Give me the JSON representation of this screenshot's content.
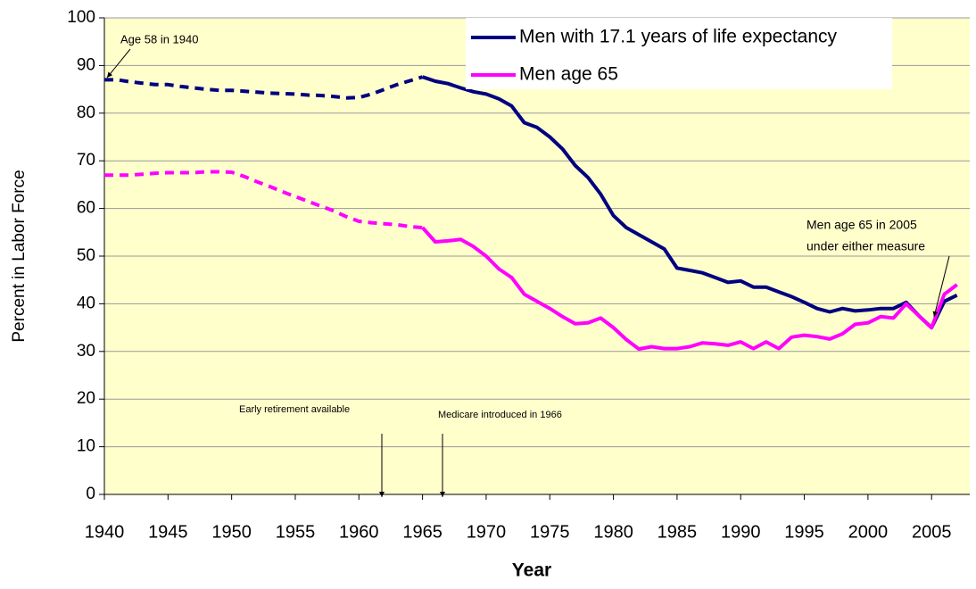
{
  "chart_data": {
    "type": "line",
    "xlabel": "Year",
    "ylabel": "Percent in Labor Force",
    "x": [
      1940,
      1941,
      1942,
      1943,
      1944,
      1945,
      1946,
      1947,
      1948,
      1949,
      1950,
      1951,
      1952,
      1953,
      1954,
      1955,
      1956,
      1957,
      1958,
      1959,
      1960,
      1961,
      1962,
      1963,
      1964,
      1965,
      1966,
      1967,
      1968,
      1969,
      1970,
      1971,
      1972,
      1973,
      1974,
      1975,
      1976,
      1977,
      1978,
      1979,
      1980,
      1981,
      1982,
      1983,
      1984,
      1985,
      1986,
      1987,
      1988,
      1989,
      1990,
      1991,
      1992,
      1993,
      1994,
      1995,
      1996,
      1997,
      1998,
      1999,
      2000,
      2001,
      2002,
      2003,
      2004,
      2005,
      2006,
      2007
    ],
    "series": [
      {
        "name": "Men with 17.1 years of life expectancy",
        "color": "#000080",
        "values": [
          87,
          87,
          86.6,
          86.3,
          86,
          86,
          85.6,
          85.3,
          85,
          84.8,
          84.8,
          84.6,
          84.4,
          84.2,
          84.1,
          84,
          83.8,
          83.7,
          83.5,
          83.2,
          83.3,
          84,
          85,
          86,
          86.8,
          87.6,
          86.7,
          86.2,
          85.3,
          84.5,
          84,
          83,
          81.5,
          78,
          77,
          75,
          72.5,
          69,
          66.5,
          63,
          58.5,
          56,
          54.5,
          53,
          51.5,
          47.5,
          47,
          46.5,
          45.5,
          44.5,
          44.8,
          43.5,
          43.5,
          42.5,
          41.5,
          40.3,
          39,
          38.3,
          39,
          38.5,
          38.7,
          39,
          39,
          40.3,
          37.5,
          35,
          40.5,
          41.8
        ]
      },
      {
        "name": "Men age 65",
        "color": "#ff00ff",
        "values": [
          67,
          67,
          67,
          67.2,
          67.4,
          67.5,
          67.5,
          67.5,
          67.7,
          67.7,
          67.6,
          66.7,
          65.6,
          64.6,
          63.5,
          62.5,
          61.5,
          60.5,
          59.5,
          58.3,
          57.3,
          57,
          56.8,
          56.6,
          56.2,
          56,
          53,
          53.2,
          53.5,
          52,
          50,
          47.3,
          45.5,
          42,
          40.5,
          39,
          37.3,
          35.8,
          36,
          37,
          35,
          32.5,
          30.5,
          31,
          30.6,
          30.6,
          31,
          31.8,
          31.6,
          31.3,
          32,
          30.6,
          32,
          30.6,
          33,
          33.4,
          33.1,
          32.6,
          33.7,
          35.7,
          36,
          37.3,
          37,
          40,
          37.5,
          35,
          42,
          44
        ]
      }
    ],
    "dashed_before": 1965,
    "xlim": [
      1940,
      2008
    ],
    "xticks": [
      1940,
      1945,
      1950,
      1955,
      1960,
      1965,
      1970,
      1975,
      1980,
      1985,
      1990,
      1995,
      2000,
      2005
    ],
    "ylim": [
      0,
      100
    ],
    "yticks": [
      0,
      10,
      20,
      30,
      40,
      50,
      60,
      70,
      80,
      90,
      100
    ],
    "grid": true,
    "background": "#ffffcc",
    "legend": "top-right",
    "annotations": [
      "Age 58 in 1940",
      "Men age 65 in 2005",
      "under either measure",
      "Early retirement available",
      "Medicare introduced in 1966"
    ]
  }
}
